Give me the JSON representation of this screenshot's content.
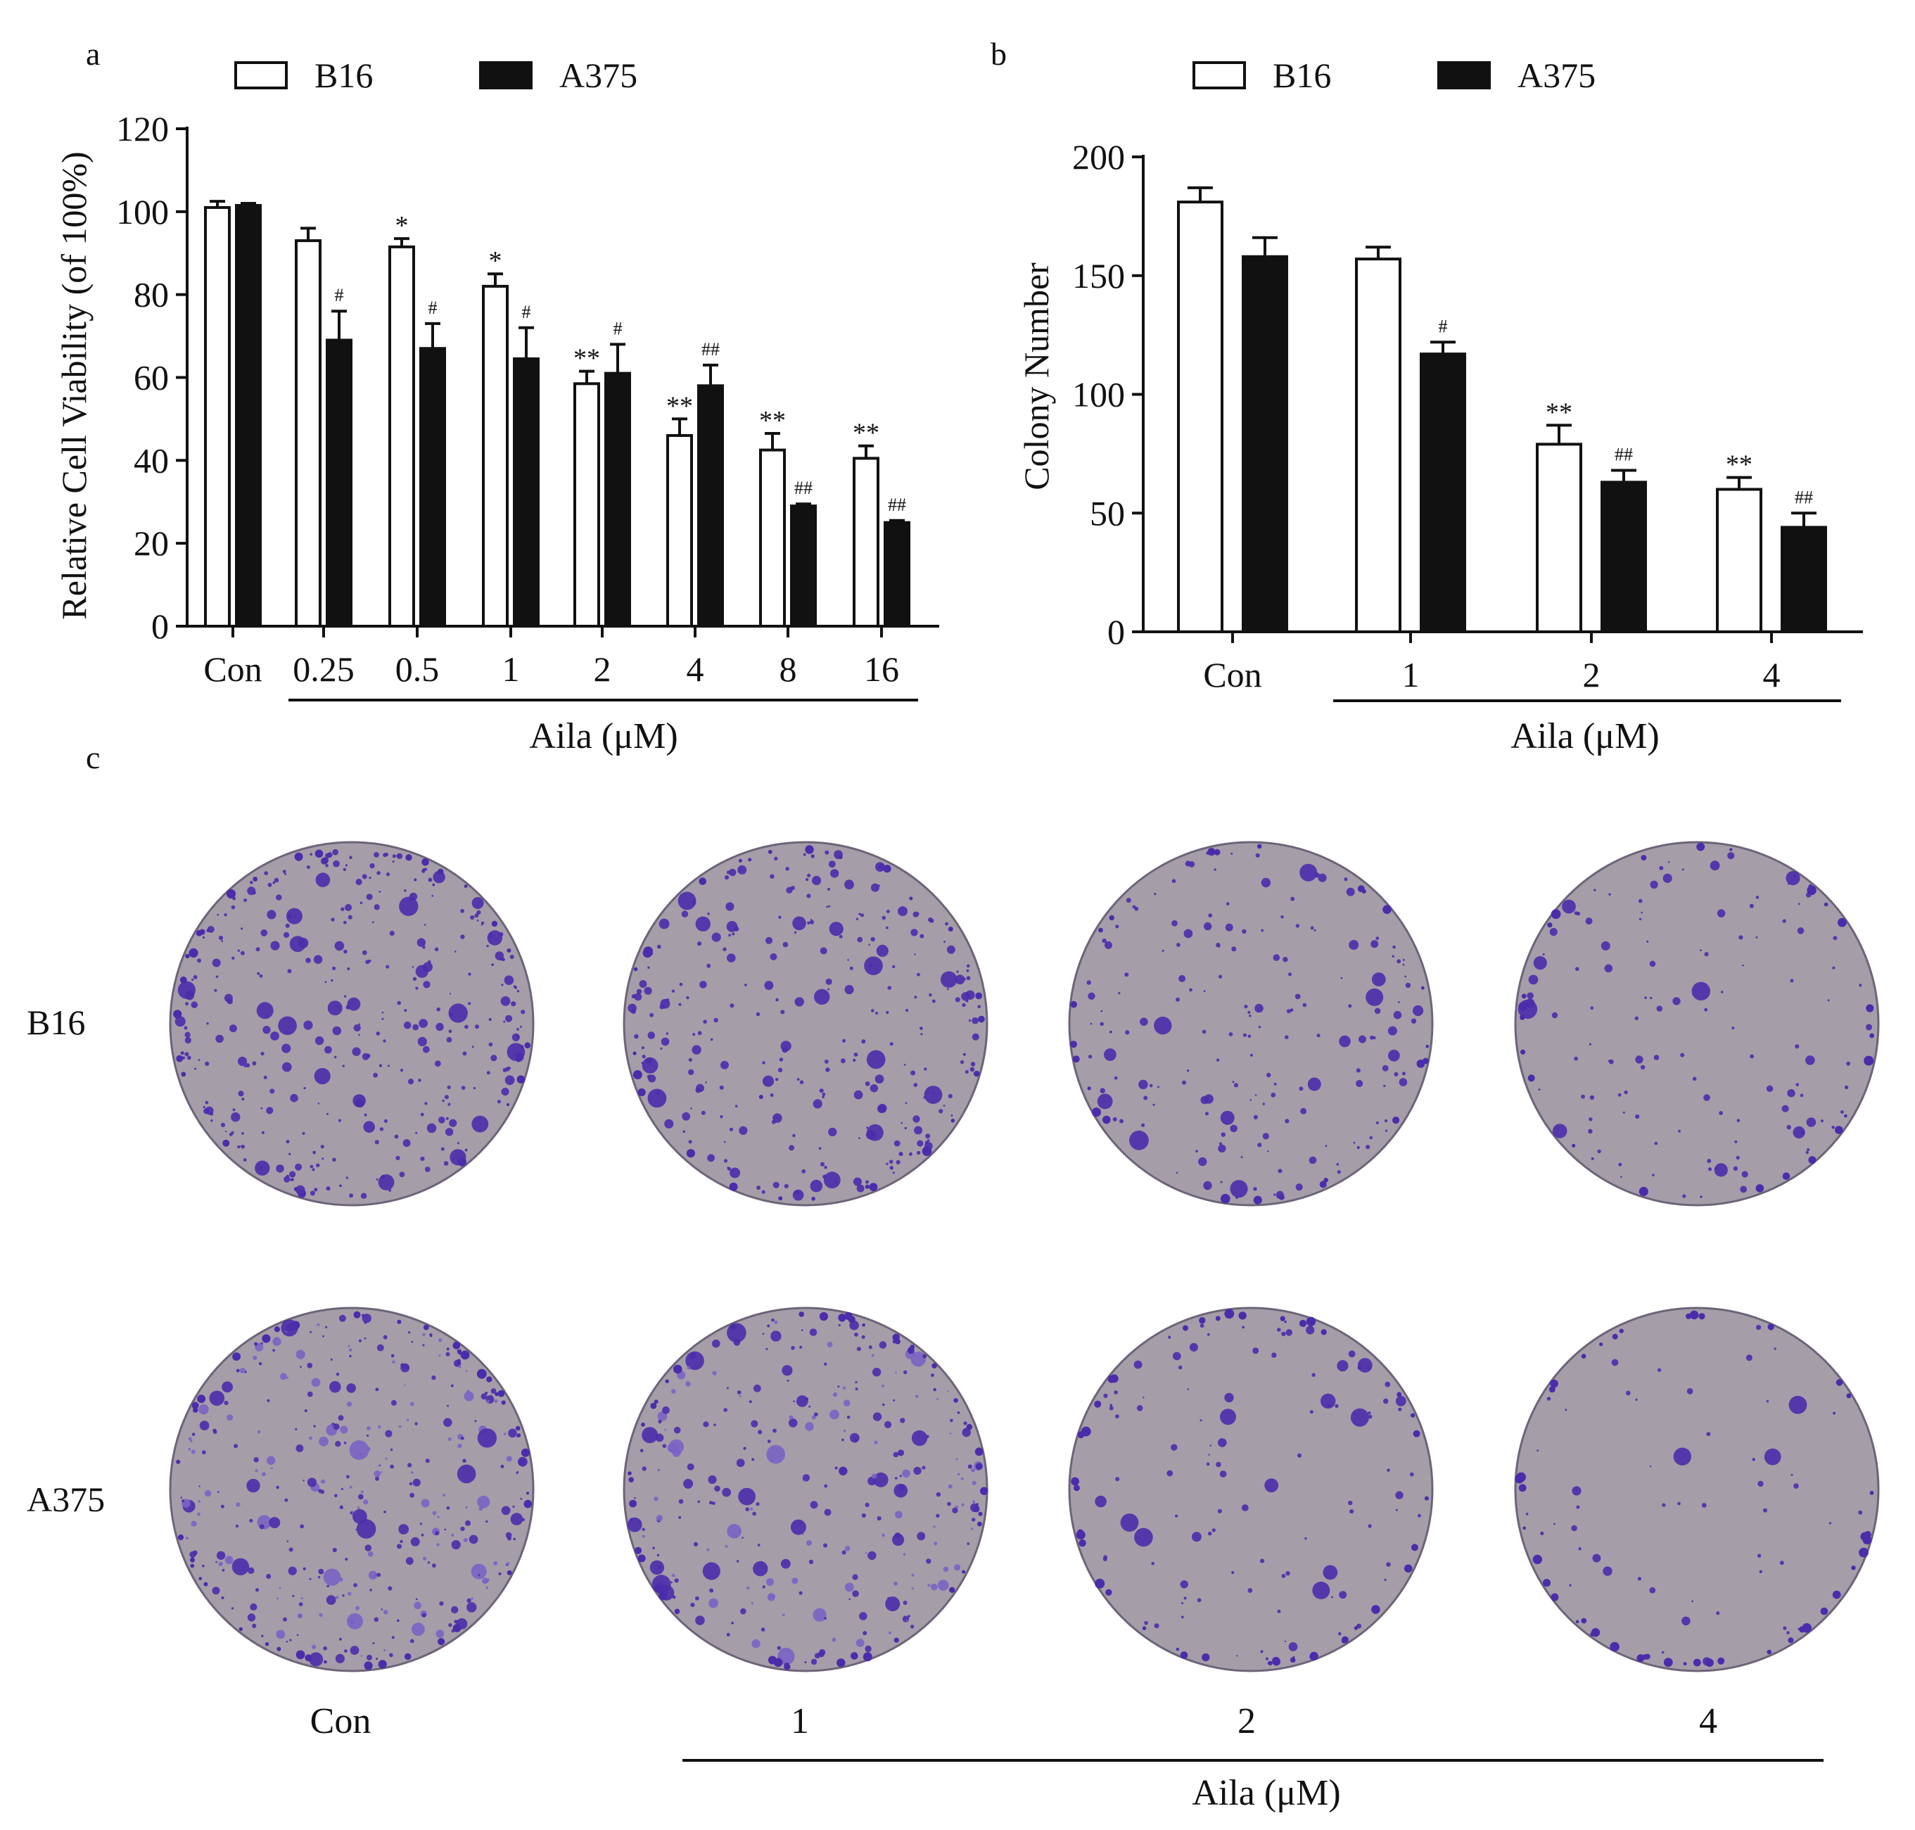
{
  "colors": {
    "b16_fill": "#ffffff",
    "a375_fill": "#111111",
    "axis": "#111111",
    "dish_fill": "#a59ea9",
    "dish_rim": "#6d6478",
    "colony": "#4b2cab",
    "colony_light": "#7a63c4"
  },
  "panel_a": {
    "panel_label": "a",
    "xlabel": "Aila (μM)",
    "chart_data": {
      "type": "bar",
      "title": "",
      "ylabel": "Relative Cell Viability (of 100%)",
      "ylim": [
        0,
        120
      ],
      "yticks": [
        0,
        20,
        40,
        60,
        80,
        100,
        120
      ],
      "categories": [
        "Con",
        "0.25",
        "0.5",
        "1",
        "2",
        "4",
        "8",
        "16"
      ],
      "series": [
        {
          "name": "B16",
          "values": [
            101,
            93,
            91.5,
            82,
            58.5,
            46,
            42.5,
            40.5
          ],
          "errors": [
            1.5,
            3,
            2,
            3,
            3,
            4,
            4,
            3
          ],
          "annotations": [
            "",
            "",
            "*",
            "*",
            "**",
            "**",
            "**",
            "**"
          ]
        },
        {
          "name": "A375",
          "values": [
            101.5,
            69,
            67,
            64.5,
            61,
            58,
            29,
            25
          ],
          "errors": [
            0.5,
            7,
            6,
            7.5,
            7,
            5,
            0.5,
            0.5
          ],
          "annotations": [
            "",
            "#",
            "#",
            "#",
            "#",
            "##",
            "##",
            "##"
          ]
        }
      ],
      "legend": [
        "B16",
        "A375"
      ],
      "legend_placement": "top"
    }
  },
  "panel_b": {
    "panel_label": "b",
    "xlabel": "Aila (μM)",
    "chart_data": {
      "type": "bar",
      "title": "",
      "ylabel": "Colony Number",
      "ylim": [
        0,
        200
      ],
      "yticks": [
        0,
        50,
        100,
        150,
        200
      ],
      "categories": [
        "Con",
        "1",
        "2",
        "4"
      ],
      "series": [
        {
          "name": "B16",
          "values": [
            181,
            157,
            79,
            60
          ],
          "errors": [
            6,
            5,
            8,
            5
          ],
          "annotations": [
            "",
            "",
            "**",
            "**"
          ]
        },
        {
          "name": "A375",
          "values": [
            158,
            117,
            63,
            44
          ],
          "errors": [
            8,
            5,
            5,
            6
          ],
          "annotations": [
            "",
            "#",
            "##",
            "##"
          ]
        }
      ],
      "legend": [
        "B16",
        "A375"
      ],
      "legend_placement": "top"
    }
  },
  "panel_c": {
    "panel_label": "c",
    "row_labels": [
      "B16",
      "A375"
    ],
    "column_labels": [
      "Con",
      "1",
      "2",
      "4"
    ],
    "xlabel": "Aila (μM)",
    "colony_density": [
      [
        1.0,
        0.85,
        0.5,
        0.35
      ],
      [
        1.0,
        0.8,
        0.3,
        0.15
      ]
    ]
  }
}
